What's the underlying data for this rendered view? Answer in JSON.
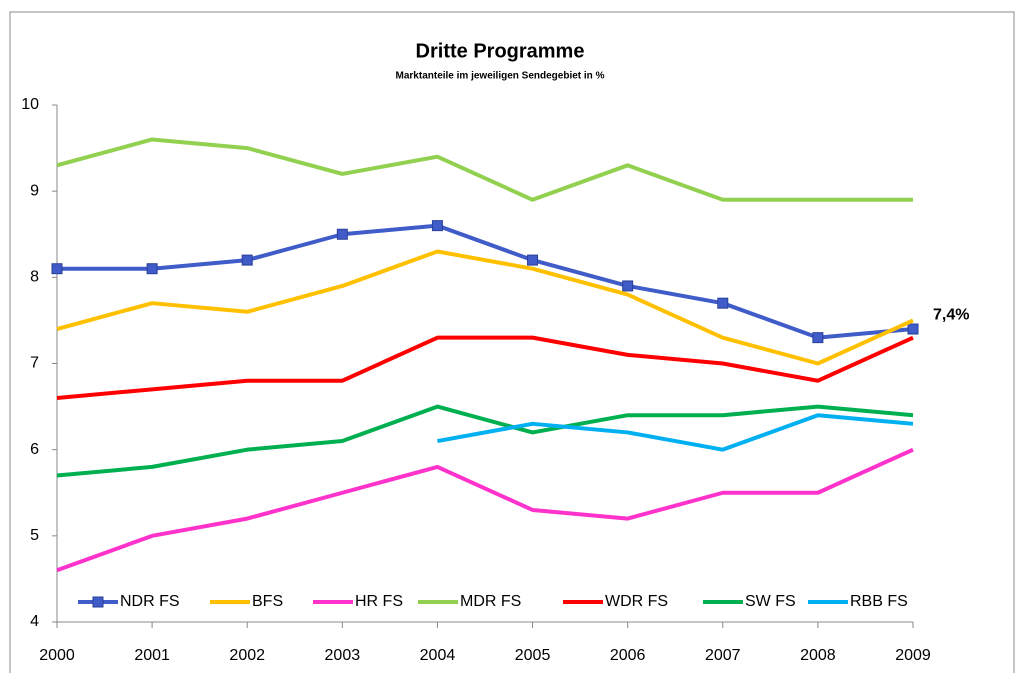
{
  "chart_data": {
    "type": "line",
    "title": "Dritte Programme",
    "subtitle": "Marktanteile im jeweiligen Sendegebiet in %",
    "x": [
      2000,
      2001,
      2002,
      2003,
      2004,
      2005,
      2006,
      2007,
      2008,
      2009
    ],
    "xlim": [
      2000,
      2009
    ],
    "xticks": [
      2000,
      2001,
      2002,
      2003,
      2004,
      2005,
      2006,
      2007,
      2008,
      2009
    ],
    "ylim": [
      4,
      10
    ],
    "yticks": [
      4,
      5,
      6,
      7,
      8,
      9,
      10
    ],
    "grid": false,
    "legend": "lower center",
    "series": [
      {
        "name": "NDR FS",
        "color": "#3f5cc8",
        "marker": "square",
        "values": [
          8.1,
          8.1,
          8.2,
          8.5,
          8.6,
          8.2,
          7.9,
          7.7,
          7.3,
          7.4
        ],
        "value_labels": [
          null,
          null,
          null,
          null,
          null,
          null,
          null,
          null,
          null,
          "7,4%"
        ]
      },
      {
        "name": "BFS",
        "color": "#ffc000",
        "values": [
          7.4,
          7.7,
          7.6,
          7.9,
          8.3,
          8.1,
          7.8,
          7.3,
          7.0,
          7.5
        ]
      },
      {
        "name": "HR FS",
        "color": "#ff33cc",
        "values": [
          4.6,
          5.0,
          5.2,
          5.5,
          5.8,
          5.3,
          5.2,
          5.5,
          5.5,
          6.0
        ]
      },
      {
        "name": "MDR FS",
        "color": "#92d050",
        "values": [
          9.3,
          9.6,
          9.5,
          9.2,
          9.4,
          8.9,
          9.3,
          8.9,
          8.9,
          8.9
        ]
      },
      {
        "name": "WDR FS",
        "color": "#ff0000",
        "values": [
          6.6,
          6.7,
          6.8,
          6.8,
          7.3,
          7.3,
          7.1,
          7.0,
          6.8,
          7.3
        ]
      },
      {
        "name": "SW FS",
        "color": "#00b050",
        "values": [
          5.7,
          5.8,
          6.0,
          6.1,
          6.5,
          6.2,
          6.4,
          6.4,
          6.5,
          6.4
        ]
      },
      {
        "name": "RBB FS",
        "color": "#00b0f0",
        "values": [
          null,
          null,
          null,
          null,
          6.1,
          6.3,
          6.2,
          6.0,
          6.4,
          6.3
        ]
      }
    ]
  }
}
